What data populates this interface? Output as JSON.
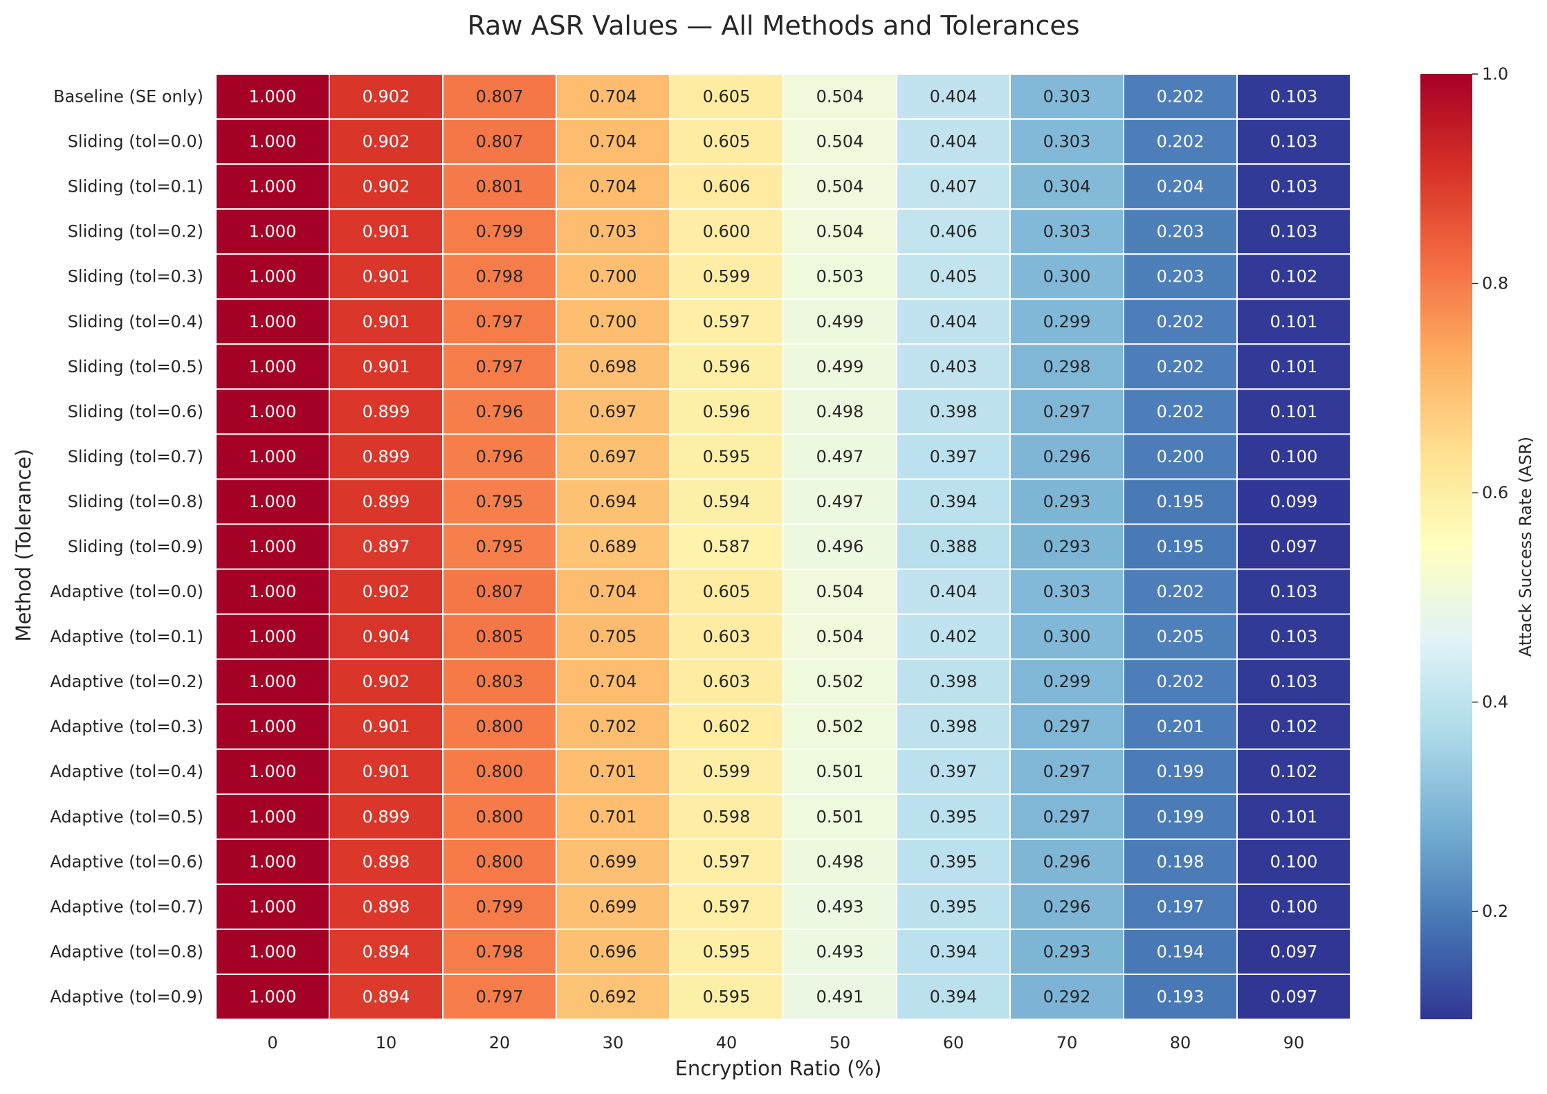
{
  "chart_data": {
    "type": "heatmap",
    "title": "Raw ASR Values — All Methods and Tolerances",
    "xlabel": "Encryption Ratio (%)",
    "ylabel": "Method (Tolerance)",
    "x_categories": [
      "0",
      "10",
      "20",
      "30",
      "40",
      "50",
      "60",
      "70",
      "80",
      "90"
    ],
    "y_categories": [
      "Baseline (SE only)",
      "Sliding (tol=0.0)",
      "Sliding (tol=0.1)",
      "Sliding (tol=0.2)",
      "Sliding (tol=0.3)",
      "Sliding (tol=0.4)",
      "Sliding (tol=0.5)",
      "Sliding (tol=0.6)",
      "Sliding (tol=0.7)",
      "Sliding (tol=0.8)",
      "Sliding (tol=0.9)",
      "Adaptive (tol=0.0)",
      "Adaptive (tol=0.1)",
      "Adaptive (tol=0.2)",
      "Adaptive (tol=0.3)",
      "Adaptive (tol=0.4)",
      "Adaptive (tol=0.5)",
      "Adaptive (tol=0.6)",
      "Adaptive (tol=0.7)",
      "Adaptive (tol=0.8)",
      "Adaptive (tol=0.9)"
    ],
    "values": [
      [
        1.0,
        0.902,
        0.807,
        0.704,
        0.605,
        0.504,
        0.404,
        0.303,
        0.202,
        0.103
      ],
      [
        1.0,
        0.902,
        0.807,
        0.704,
        0.605,
        0.504,
        0.404,
        0.303,
        0.202,
        0.103
      ],
      [
        1.0,
        0.902,
        0.801,
        0.704,
        0.606,
        0.504,
        0.407,
        0.304,
        0.204,
        0.103
      ],
      [
        1.0,
        0.901,
        0.799,
        0.703,
        0.6,
        0.504,
        0.406,
        0.303,
        0.203,
        0.103
      ],
      [
        1.0,
        0.901,
        0.798,
        0.7,
        0.599,
        0.503,
        0.405,
        0.3,
        0.203,
        0.102
      ],
      [
        1.0,
        0.901,
        0.797,
        0.7,
        0.597,
        0.499,
        0.404,
        0.299,
        0.202,
        0.101
      ],
      [
        1.0,
        0.901,
        0.797,
        0.698,
        0.596,
        0.499,
        0.403,
        0.298,
        0.202,
        0.101
      ],
      [
        1.0,
        0.899,
        0.796,
        0.697,
        0.596,
        0.498,
        0.398,
        0.297,
        0.202,
        0.101
      ],
      [
        1.0,
        0.899,
        0.796,
        0.697,
        0.595,
        0.497,
        0.397,
        0.296,
        0.2,
        0.1
      ],
      [
        1.0,
        0.899,
        0.795,
        0.694,
        0.594,
        0.497,
        0.394,
        0.293,
        0.195,
        0.099
      ],
      [
        1.0,
        0.897,
        0.795,
        0.689,
        0.587,
        0.496,
        0.388,
        0.293,
        0.195,
        0.097
      ],
      [
        1.0,
        0.902,
        0.807,
        0.704,
        0.605,
        0.504,
        0.404,
        0.303,
        0.202,
        0.103
      ],
      [
        1.0,
        0.904,
        0.805,
        0.705,
        0.603,
        0.504,
        0.402,
        0.3,
        0.205,
        0.103
      ],
      [
        1.0,
        0.902,
        0.803,
        0.704,
        0.603,
        0.502,
        0.398,
        0.299,
        0.202,
        0.103
      ],
      [
        1.0,
        0.901,
        0.8,
        0.702,
        0.602,
        0.502,
        0.398,
        0.297,
        0.201,
        0.102
      ],
      [
        1.0,
        0.901,
        0.8,
        0.701,
        0.599,
        0.501,
        0.397,
        0.297,
        0.199,
        0.102
      ],
      [
        1.0,
        0.899,
        0.8,
        0.701,
        0.598,
        0.501,
        0.395,
        0.297,
        0.199,
        0.101
      ],
      [
        1.0,
        0.898,
        0.8,
        0.699,
        0.597,
        0.498,
        0.395,
        0.296,
        0.198,
        0.1
      ],
      [
        1.0,
        0.898,
        0.799,
        0.699,
        0.597,
        0.493,
        0.395,
        0.296,
        0.197,
        0.1
      ],
      [
        1.0,
        0.894,
        0.798,
        0.696,
        0.595,
        0.493,
        0.394,
        0.293,
        0.194,
        0.097
      ],
      [
        1.0,
        0.894,
        0.797,
        0.692,
        0.595,
        0.491,
        0.394,
        0.292,
        0.193,
        0.097
      ]
    ],
    "value_format": "3 decimals",
    "colormap": "RdYlBu_r",
    "color_range": [
      0.097,
      1.0
    ],
    "colorbar": {
      "label": "Attack Success Rate (ASR)",
      "ticks": [
        0.2,
        0.4,
        0.6,
        0.8,
        1.0
      ],
      "tick_labels": [
        "0.2",
        "0.4",
        "0.6",
        "0.8",
        "1.0"
      ]
    },
    "cell_separator_color": "#ffffff",
    "grid": false,
    "legend": "colorbar-right"
  }
}
